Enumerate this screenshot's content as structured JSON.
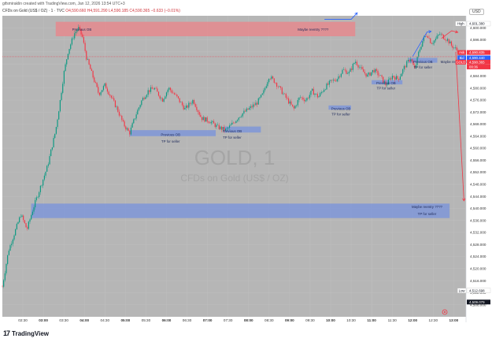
{
  "header": {
    "author_line": "gifsmiraklin created with TradingView.com, Jan 12, 2026 13:54 UTC+3",
    "symbol": "CFDs on Gold (US$ / OZ) · 1 · TVC",
    "ohlc": "O4,590.660 H4,591.290 L4,590.185 C4,590.365 −0.633 (−0.01%)",
    "currency": "USD"
  },
  "watermark": {
    "symbol": "GOLD, 1",
    "name": "CFDs on Gold (US$ / OZ)"
  },
  "footer": {
    "brand": "TradingView",
    "logo": "tradingview-logo-icon"
  },
  "colors": {
    "plot_bg": "#b6b6b6",
    "up": "#089981",
    "down": "#f23645",
    "supply_zone": "#e58a8e",
    "demand_zone": "#7f96d8",
    "arrow_up": "#2962ff",
    "arrow_down": "#f23645"
  },
  "chart_data": {
    "type": "candlestick",
    "ylim": [
      4504,
      4604
    ],
    "y_ticks": [
      4508,
      4512,
      4516,
      4520,
      4524,
      4528,
      4532,
      4536,
      4540,
      4544,
      4548,
      4552,
      4556,
      4560,
      4564,
      4568,
      4572,
      4576,
      4580,
      4584,
      4588,
      4592,
      4596,
      4600
    ],
    "y_labels": [
      "4,508.000",
      "4,512.000",
      "4,516.000",
      "4,520.000",
      "4,524.000",
      "4,528.000",
      "4,532.000",
      "4,536.000",
      "4,540.000",
      "4,544.000",
      "4,548.000",
      "4,552.000",
      "4,556.000",
      "4,560.000",
      "4,564.000",
      "4,568.000",
      "4,572.000",
      "4,576.000",
      "4,580.000",
      "4,584.000",
      "4,588.000",
      "4,592.000",
      "4,596.000",
      "4,600.000"
    ],
    "x_ticks": [
      "02:30",
      "03:00",
      "03:30",
      "04:00",
      "04:30",
      "05:00",
      "05:30",
      "06:00",
      "06:30",
      "07:00",
      "07:30",
      "08:00",
      "08:30",
      "09:00",
      "09:30",
      "10:00",
      "10:30",
      "11:00",
      "11:30",
      "12:00",
      "12:30",
      "13:00"
    ],
    "x_tick_values": [
      2.5,
      3.0,
      3.5,
      4.0,
      4.5,
      5.0,
      5.5,
      6.0,
      6.5,
      7.0,
      7.5,
      8.0,
      8.5,
      9.0,
      9.5,
      10.0,
      10.5,
      11.0,
      11.5,
      12.0,
      12.5,
      13.0
    ],
    "x_tick_bold": [
      false,
      true,
      false,
      true,
      false,
      true,
      false,
      true,
      false,
      true,
      false,
      true,
      false,
      true,
      false,
      true,
      false,
      true,
      false,
      true,
      false,
      true
    ],
    "xlim": [
      2.0,
      13.3
    ],
    "path_points": [
      [
        2.0,
        4514
      ],
      [
        2.15,
        4526
      ],
      [
        2.3,
        4532
      ],
      [
        2.45,
        4538
      ],
      [
        2.6,
        4533
      ],
      [
        2.75,
        4540
      ],
      [
        2.9,
        4546
      ],
      [
        3.0,
        4550
      ],
      [
        3.1,
        4554
      ],
      [
        3.2,
        4560
      ],
      [
        3.3,
        4566
      ],
      [
        3.4,
        4575
      ],
      [
        3.5,
        4585
      ],
      [
        3.6,
        4592
      ],
      [
        3.75,
        4598
      ],
      [
        3.85,
        4600
      ],
      [
        3.95,
        4597
      ],
      [
        4.05,
        4590
      ],
      [
        4.2,
        4584
      ],
      [
        4.35,
        4578
      ],
      [
        4.5,
        4581
      ],
      [
        4.65,
        4577
      ],
      [
        4.8,
        4573
      ],
      [
        4.95,
        4568
      ],
      [
        5.1,
        4565
      ],
      [
        5.25,
        4571
      ],
      [
        5.4,
        4576
      ],
      [
        5.55,
        4579
      ],
      [
        5.7,
        4580
      ],
      [
        5.9,
        4576
      ],
      [
        6.05,
        4580
      ],
      [
        6.25,
        4577
      ],
      [
        6.45,
        4573
      ],
      [
        6.65,
        4576
      ],
      [
        6.85,
        4570
      ],
      [
        7.05,
        4569
      ],
      [
        7.25,
        4567
      ],
      [
        7.45,
        4566
      ],
      [
        7.6,
        4568
      ],
      [
        7.8,
        4571
      ],
      [
        8.0,
        4573
      ],
      [
        8.2,
        4575
      ],
      [
        8.35,
        4578
      ],
      [
        8.5,
        4584
      ],
      [
        8.65,
        4582
      ],
      [
        8.8,
        4579
      ],
      [
        8.95,
        4576
      ],
      [
        9.1,
        4573
      ],
      [
        9.25,
        4577
      ],
      [
        9.4,
        4576
      ],
      [
        9.55,
        4579
      ],
      [
        9.7,
        4577
      ],
      [
        9.85,
        4580
      ],
      [
        10.0,
        4582
      ],
      [
        10.15,
        4583
      ],
      [
        10.3,
        4586
      ],
      [
        10.45,
        4585
      ],
      [
        10.6,
        4589
      ],
      [
        10.75,
        4586
      ],
      [
        10.9,
        4584
      ],
      [
        11.05,
        4586
      ],
      [
        11.2,
        4584
      ],
      [
        11.35,
        4581
      ],
      [
        11.5,
        4584
      ],
      [
        11.65,
        4583
      ],
      [
        11.8,
        4587
      ],
      [
        11.95,
        4590
      ],
      [
        12.05,
        4586
      ],
      [
        12.15,
        4592
      ],
      [
        12.25,
        4596
      ],
      [
        12.35,
        4598
      ],
      [
        12.45,
        4595
      ],
      [
        12.55,
        4596
      ],
      [
        12.65,
        4598
      ],
      [
        12.75,
        4597
      ],
      [
        12.85,
        4596
      ],
      [
        12.95,
        4594
      ],
      [
        13.05,
        4593
      ],
      [
        13.15,
        4591
      ]
    ],
    "candle_step": 0.032,
    "price_labels": [
      {
        "name": "high-label",
        "text": "High",
        "value": "4,601.380",
        "y": 4601.38,
        "bg": "#ffffff",
        "fg": "#131722"
      },
      {
        "name": "ask-label",
        "text": "Ask",
        "value": "4,590.835",
        "y": 4591.8,
        "bg": "#f23645",
        "fg": "#ffffff"
      },
      {
        "name": "bid-label",
        "text": "Bid",
        "value": "4,590.440",
        "y": 4590.0,
        "bg": "#2962ff",
        "fg": "#ffffff"
      },
      {
        "name": "gold-label",
        "text": "GOLD",
        "value": "4,590.365",
        "y": 4588.6,
        "bg": "#f23645",
        "fg": "#ffffff"
      },
      {
        "name": "countdown-label",
        "text": "",
        "value": "00:36",
        "y": 4587.0,
        "bg": "#f23645",
        "fg": "#ffffff"
      },
      {
        "name": "low-label",
        "text": "Low",
        "value": "4,512.698",
        "y": 4512.7,
        "bg": "#ffffff",
        "fg": "#131722"
      },
      {
        "name": "crosshair-label",
        "text": "",
        "value": "4,509.079",
        "y": 4508.9,
        "bg": "#131722",
        "fg": "#ffffff"
      }
    ],
    "zones": [
      {
        "name": "supply-zone",
        "x1": 3.3,
        "x2": 10.6,
        "y1": 4602.0,
        "y2": 4597.2,
        "kind": "supply"
      },
      {
        "name": "demand-zone-1",
        "x1": 5.1,
        "x2": 7.2,
        "y1": 4566.0,
        "y2": 4564.0,
        "kind": "demand"
      },
      {
        "name": "demand-zone-2",
        "x1": 7.4,
        "x2": 8.3,
        "y1": 4567.2,
        "y2": 4565.2,
        "kind": "demand"
      },
      {
        "name": "demand-zone-3",
        "x1": 9.95,
        "x2": 10.5,
        "y1": 4574.2,
        "y2": 4572.8,
        "kind": "demand"
      },
      {
        "name": "demand-zone-4",
        "x1": 11.0,
        "x2": 11.75,
        "y1": 4582.6,
        "y2": 4581.2,
        "kind": "demand"
      },
      {
        "name": "demand-zone-5",
        "x1": 11.9,
        "x2": 12.6,
        "y1": 4590.0,
        "y2": 4588.4,
        "kind": "demand"
      },
      {
        "name": "demand-zone-large",
        "x1": 2.7,
        "x2": 12.9,
        "y1": 4541.6,
        "y2": 4536.8,
        "kind": "demand"
      }
    ],
    "annotations": [
      {
        "name": "label-previous-ob-top",
        "text": "Previous OB",
        "x": 3.7,
        "y": 4599.4,
        "anchor": "start",
        "bold": false
      },
      {
        "name": "label-maybe-reentry-top",
        "text": "Maybe reentry ????",
        "x": 9.2,
        "y": 4599.4,
        "anchor": "start",
        "bold": false
      },
      {
        "name": "label-previous-ob-1",
        "text": "Previous OB",
        "x": 6.1,
        "y": 4564.5,
        "anchor": "middle",
        "bold": false
      },
      {
        "name": "label-tp-seller-1",
        "text": "TP for seller",
        "x": 6.1,
        "y": 4562.3,
        "anchor": "middle",
        "bold": false
      },
      {
        "name": "label-previous-ob-2",
        "text": "Previous OB",
        "x": 7.6,
        "y": 4565.7,
        "anchor": "middle",
        "bold": false
      },
      {
        "name": "label-tp-seller-2",
        "text": "TP for seller",
        "x": 7.6,
        "y": 4563.6,
        "anchor": "middle",
        "bold": false
      },
      {
        "name": "label-previous-ob-3",
        "text": "Previous OB",
        "x": 10.25,
        "y": 4573.1,
        "anchor": "middle",
        "bold": false
      },
      {
        "name": "label-tp-seller-3",
        "text": "TP for seller",
        "x": 10.25,
        "y": 4571.3,
        "anchor": "middle",
        "bold": false
      },
      {
        "name": "label-previous-ob-4",
        "text": "Previous OB",
        "x": 11.35,
        "y": 4581.6,
        "anchor": "middle",
        "bold": false
      },
      {
        "name": "label-tp-seller-4",
        "text": "TP for seller",
        "x": 11.35,
        "y": 4579.9,
        "anchor": "middle",
        "bold": false
      },
      {
        "name": "label-previous-ob-5",
        "text": "Previous OB",
        "x": 12.25,
        "y": 4588.7,
        "anchor": "middle",
        "bold": false
      },
      {
        "name": "label-tp-seller-5",
        "text": "TP for seller",
        "x": 12.25,
        "y": 4586.9,
        "anchor": "middle",
        "bold": false
      },
      {
        "name": "label-maybe-reentry-right",
        "text": "Maybe reentry ????",
        "x": 12.68,
        "y": 4588.7,
        "anchor": "start",
        "bold": false
      },
      {
        "name": "label-maybe-reentry-bottom",
        "text": "Maybe reentry ????",
        "x": 12.35,
        "y": 4540.5,
        "anchor": "middle",
        "bold": false
      },
      {
        "name": "label-tp-seller-bottom",
        "text": "TP for seller",
        "x": 12.35,
        "y": 4538.2,
        "anchor": "middle",
        "bold": false
      }
    ],
    "arrows": [
      {
        "name": "blue-arrow-top",
        "color": "#2962ff",
        "points": [
          [
            9.85,
            4602.8
          ],
          [
            10.5,
            4602.8
          ],
          [
            10.65,
            4605.0
          ]
        ]
      },
      {
        "name": "blue-arrow-v",
        "color": "#2962ff",
        "points": [
          [
            12.0,
            4590.5
          ],
          [
            12.35,
            4598.6
          ],
          [
            12.45,
            4598.8
          ]
        ]
      },
      {
        "name": "red-arrow-top",
        "color": "#f23645",
        "points": [
          [
            12.7,
            4596.5
          ],
          [
            12.95,
            4599.0
          ],
          [
            13.1,
            4598.5
          ]
        ]
      },
      {
        "name": "red-arrow-down",
        "color": "#f23645",
        "points": [
          [
            13.05,
            4592.0
          ],
          [
            13.25,
            4542.5
          ]
        ]
      }
    ]
  }
}
